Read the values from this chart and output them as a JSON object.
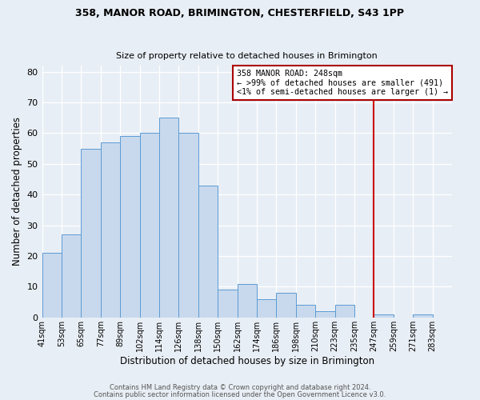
{
  "title1": "358, MANOR ROAD, BRIMINGTON, CHESTERFIELD, S43 1PP",
  "title2": "Size of property relative to detached houses in Brimington",
  "xlabel": "Distribution of detached houses by size in Brimington",
  "ylabel": "Number of detached properties",
  "bin_labels": [
    "41sqm",
    "53sqm",
    "65sqm",
    "77sqm",
    "89sqm",
    "102sqm",
    "114sqm",
    "126sqm",
    "138sqm",
    "150sqm",
    "162sqm",
    "174sqm",
    "186sqm",
    "198sqm",
    "210sqm",
    "223sqm",
    "235sqm",
    "247sqm",
    "259sqm",
    "271sqm",
    "283sqm"
  ],
  "values": [
    21,
    27,
    55,
    57,
    59,
    60,
    65,
    60,
    43,
    9,
    11,
    6,
    8,
    4,
    2,
    4,
    0,
    1,
    0,
    1,
    0
  ],
  "bar_fill": "#c8d9ed",
  "bar_edge": "#5b9bd5",
  "bg_color": "#e8eef5",
  "grid_color": "#ffffff",
  "vline_color": "#cc0000",
  "vline_pos": 17,
  "ylim": [
    0,
    82
  ],
  "yticks": [
    0,
    10,
    20,
    30,
    40,
    50,
    60,
    70,
    80
  ],
  "legend_title": "358 MANOR ROAD: 248sqm",
  "legend_line1": "← >99% of detached houses are smaller (491)",
  "legend_line2": "<1% of semi-detached houses are larger (1) →",
  "legend_box_color": "#aa0000",
  "footnote1": "Contains HM Land Registry data © Crown copyright and database right 2024.",
  "footnote2": "Contains public sector information licensed under the Open Government Licence v3.0."
}
